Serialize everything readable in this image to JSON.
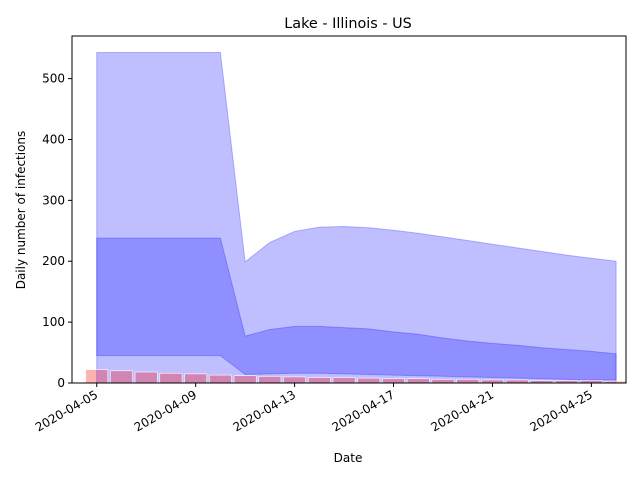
{
  "chart_data": {
    "type": "area",
    "title": "Lake - Illinois - US",
    "xlabel": "Date",
    "ylabel": "Daily number of infections",
    "x_ticks": [
      "2020-04-05",
      "2020-04-09",
      "2020-04-13",
      "2020-04-17",
      "2020-04-21",
      "2020-04-25"
    ],
    "y_ticks": [
      0,
      100,
      200,
      300,
      400,
      500
    ],
    "xlim": [
      "2020-04-04",
      "2020-04-26.4"
    ],
    "ylim": [
      0,
      570
    ],
    "grid": false,
    "legend": "none",
    "bands": [
      {
        "color": "#0000ff",
        "opacity": 0.25,
        "x": [
          "2020-04-05",
          "2020-04-06",
          "2020-04-07",
          "2020-04-08",
          "2020-04-09",
          "2020-04-10",
          "2020-04-11",
          "2020-04-12",
          "2020-04-13",
          "2020-04-14",
          "2020-04-15",
          "2020-04-16",
          "2020-04-17",
          "2020-04-18",
          "2020-04-19",
          "2020-04-20",
          "2020-04-21",
          "2020-04-22",
          "2020-04-23",
          "2020-04-24",
          "2020-04-25",
          "2020-04-26"
        ],
        "upper": [
          543,
          543,
          543,
          543,
          543,
          543,
          199,
          231,
          249,
          256,
          257,
          255,
          251,
          246,
          240,
          234,
          228,
          222,
          216,
          210,
          205,
          200
        ],
        "lower": [
          0,
          0,
          0,
          0,
          0,
          0,
          0,
          0,
          0,
          0,
          0,
          0,
          0,
          0,
          0,
          0,
          0,
          0,
          0,
          0,
          0,
          0
        ]
      },
      {
        "color": "#0000ff",
        "opacity": 0.25,
        "x": [
          "2020-04-05",
          "2020-04-06",
          "2020-04-07",
          "2020-04-08",
          "2020-04-09",
          "2020-04-10",
          "2020-04-11",
          "2020-04-12",
          "2020-04-13",
          "2020-04-14",
          "2020-04-15",
          "2020-04-16",
          "2020-04-17",
          "2020-04-18",
          "2020-04-19",
          "2020-04-20",
          "2020-04-21",
          "2020-04-22",
          "2020-04-23",
          "2020-04-24",
          "2020-04-25",
          "2020-04-26"
        ],
        "upper": [
          238,
          238,
          238,
          238,
          238,
          238,
          77,
          88,
          93,
          93,
          91,
          89,
          84,
          80,
          74,
          69,
          65,
          62,
          58,
          55,
          52,
          48
        ],
        "lower": [
          45,
          45,
          45,
          45,
          45,
          45,
          14,
          15,
          16,
          16,
          15,
          14,
          13,
          12,
          11,
          10,
          9,
          8,
          7,
          6,
          5,
          5
        ]
      }
    ],
    "bars": {
      "color": "#ff0000",
      "opacity": 0.3,
      "x": [
        "2020-04-05",
        "2020-04-06",
        "2020-04-07",
        "2020-04-08",
        "2020-04-09",
        "2020-04-10",
        "2020-04-11",
        "2020-04-12",
        "2020-04-13",
        "2020-04-14",
        "2020-04-15",
        "2020-04-16",
        "2020-04-17",
        "2020-04-18",
        "2020-04-19",
        "2020-04-20",
        "2020-04-21",
        "2020-04-22",
        "2020-04-23",
        "2020-04-24",
        "2020-04-25",
        "2020-04-26"
      ],
      "values": [
        22,
        20,
        18,
        16,
        15,
        13,
        12,
        11,
        10,
        9,
        9,
        8,
        7,
        7,
        6,
        6,
        5,
        5,
        4,
        4,
        4,
        3
      ]
    }
  }
}
